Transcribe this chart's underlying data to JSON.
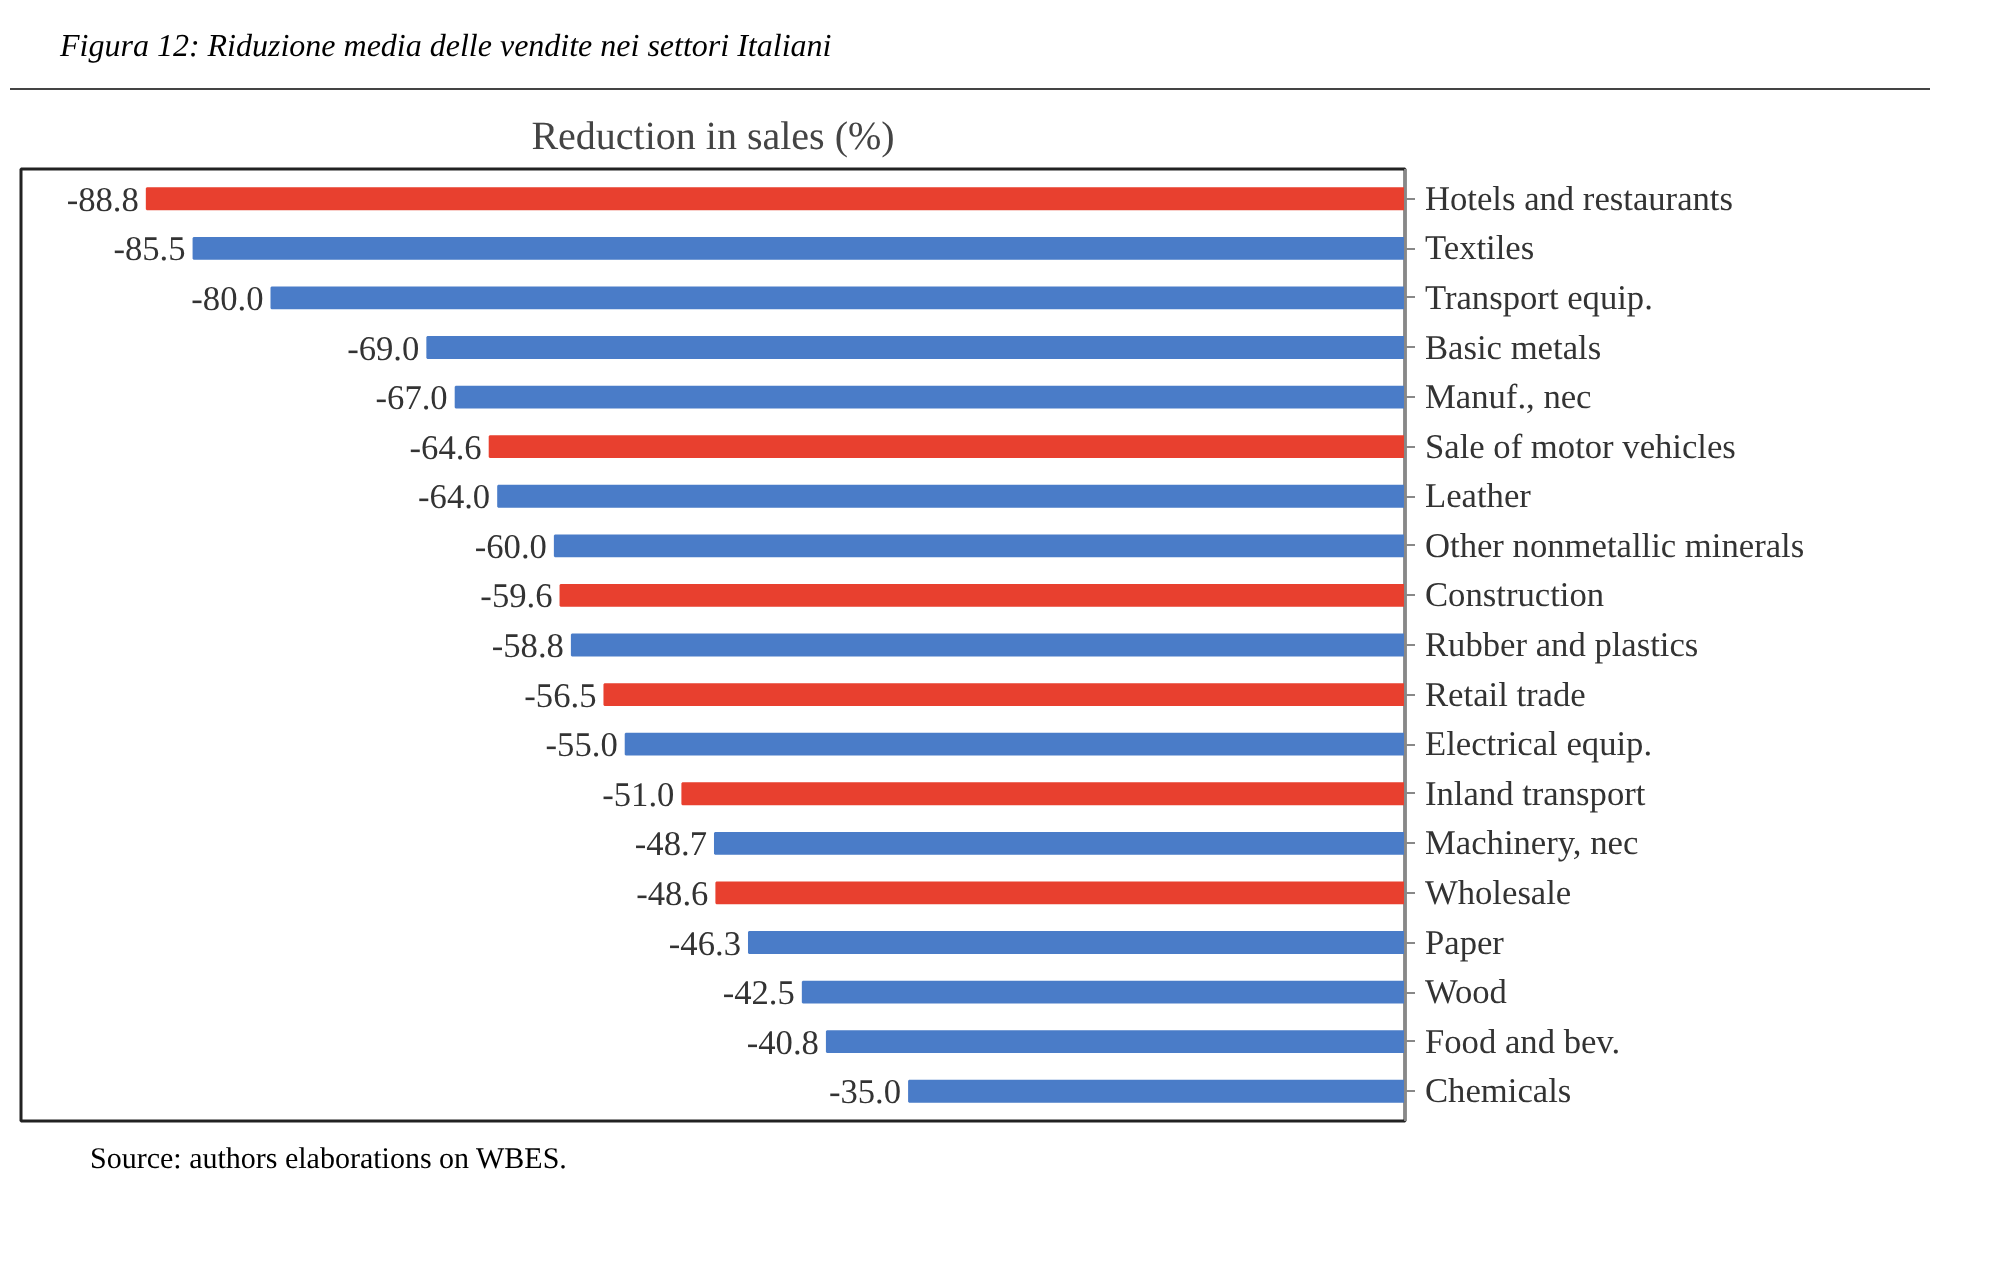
{
  "chart_data": {
    "type": "bar",
    "orientation": "horizontal",
    "title": "Figura 12: Riduzione media delle vendite  nei settori Italiani",
    "subtitle": "Reduction in sales (%)",
    "categories": [
      "Hotels and restaurants",
      "Textiles",
      "Transport equip.",
      "Basic metals",
      "Manuf., nec",
      "Sale of motor vehicles",
      "Leather",
      "Other nonmetallic minerals",
      "Construction",
      "Rubber and plastics",
      "Retail trade",
      "Electrical equip.",
      "Inland transport",
      "Machinery, nec",
      "Wholesale",
      "Paper",
      "Wood",
      "Food and bev.",
      "Chemicals"
    ],
    "values": [
      -88.8,
      -85.5,
      -80.0,
      -69.0,
      -67.0,
      -64.6,
      -64.0,
      -60.0,
      -59.6,
      -58.8,
      -56.5,
      -55.0,
      -51.0,
      -48.7,
      -48.6,
      -46.3,
      -42.5,
      -40.8,
      -35.0
    ],
    "value_labels": [
      "-88.8",
      "-85.5",
      "-80.0",
      "-69.0",
      "-67.0",
      "-64.6",
      "-64.0",
      "-60.0",
      "-59.6",
      "-58.8",
      "-56.5",
      "-55.0",
      "-51.0",
      "-48.7",
      "-48.6",
      "-46.3",
      "-42.5",
      "-40.8",
      "-35.0"
    ],
    "colors": [
      "#e8402f",
      "#4a7cc8",
      "#4a7cc8",
      "#4a7cc8",
      "#4a7cc8",
      "#e8402f",
      "#4a7cc8",
      "#4a7cc8",
      "#e8402f",
      "#4a7cc8",
      "#e8402f",
      "#4a7cc8",
      "#e8402f",
      "#4a7cc8",
      "#e8402f",
      "#4a7cc8",
      "#4a7cc8",
      "#4a7cc8",
      "#4a7cc8"
    ],
    "grid": false,
    "annotations": [
      "Source: authors elaborations on WBES."
    ]
  }
}
